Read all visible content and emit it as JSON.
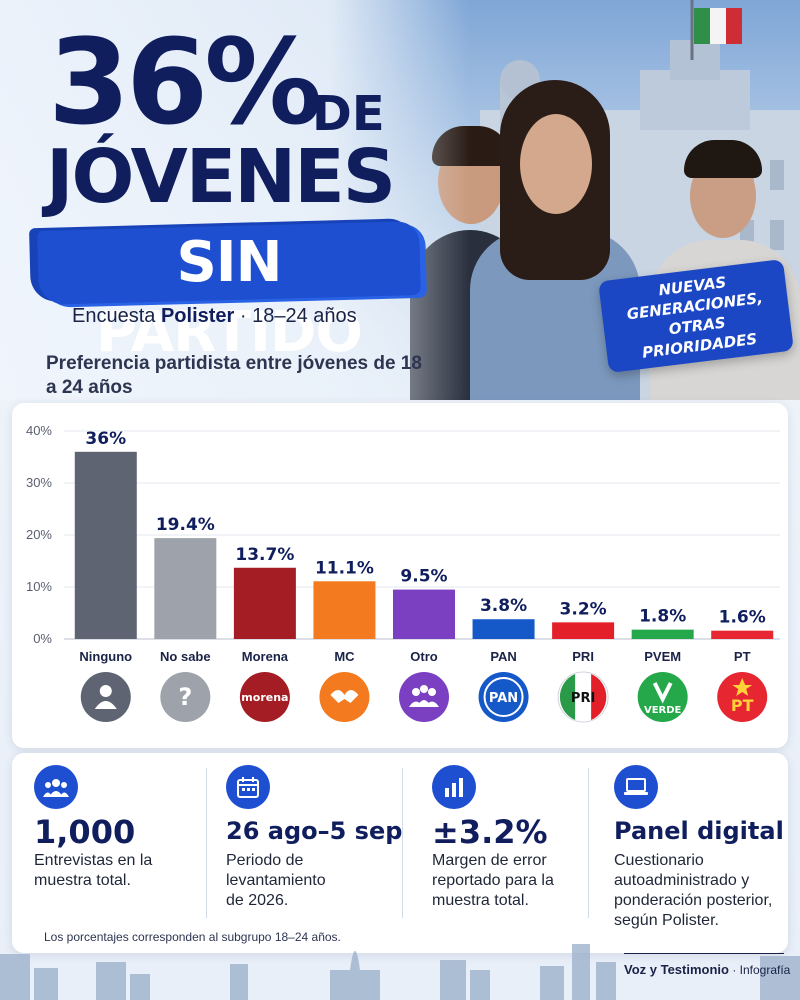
{
  "headline": {
    "percent": "36%",
    "de": "DE",
    "line2": "JÓVENES",
    "line3": "SIN PARTIDO"
  },
  "subhead": {
    "prefix": "Encuesta",
    "pollster": "Polister",
    "suffix": "· 18–24 años"
  },
  "tagline": "NUEVAS GENERACIONES, OTRAS PRIORIDADES",
  "chart_data": {
    "type": "bar",
    "title": "Preferencia partidista entre jóvenes de 18 a 24 años",
    "categories": [
      "Ninguno",
      "No sabe",
      "Morena",
      "MC",
      "Otro",
      "PAN",
      "PRI",
      "PVEM",
      "PT"
    ],
    "values": [
      36,
      19.4,
      13.7,
      11.1,
      9.5,
      3.8,
      3.2,
      1.8,
      1.6
    ],
    "data_labels": [
      "36%",
      "19.4%",
      "13.7%",
      "11.1%",
      "9.5%",
      "3.8%",
      "3.2%",
      "1.8%",
      "1.6%"
    ],
    "colors": [
      "#5f6472",
      "#9ea3ab",
      "#a51d24",
      "#f47a1f",
      "#7b3fc2",
      "#1559c9",
      "#e3202a",
      "#24a84a",
      "#e62731"
    ],
    "ylim": [
      0,
      40
    ],
    "yticks": [
      "0%",
      "10%",
      "20%",
      "30%",
      "40%"
    ],
    "ytick_values": [
      0,
      10,
      20,
      30,
      40
    ],
    "grid": true,
    "icons": [
      {
        "name": "person-icon",
        "text": "",
        "bg": "#5f6472"
      },
      {
        "name": "question-icon",
        "text": "?",
        "bg": "#9ea3ab"
      },
      {
        "name": "morena-logo-icon",
        "text": "morena",
        "bg": "#a51d24"
      },
      {
        "name": "mc-logo-icon",
        "text": "",
        "bg": "#f47a1f"
      },
      {
        "name": "group-icon",
        "text": "",
        "bg": "#7b3fc2"
      },
      {
        "name": "pan-logo-icon",
        "text": "PAN",
        "bg": "#1559c9"
      },
      {
        "name": "pri-logo-icon",
        "text": "PRI",
        "bg": "#ffffff"
      },
      {
        "name": "pvem-logo-icon",
        "text": "VERDE",
        "bg": "#24a84a"
      },
      {
        "name": "pt-logo-icon",
        "text": "PT",
        "bg": "#e62731"
      }
    ]
  },
  "stats": [
    {
      "icon": "people-icon",
      "value": "1,000",
      "desc": "Entrevistas en la muestra total."
    },
    {
      "icon": "calendar-icon",
      "value": "26 ago–5 sep",
      "desc": "Periodo de levantamiento de 2026."
    },
    {
      "icon": "bar-chart-icon",
      "value": "±3.2%",
      "desc": "Margen de error reportado para la muestra total."
    },
    {
      "icon": "laptop-icon",
      "value": "Panel digital",
      "desc": "Cuestionario autoadministrado y ponderación posterior, según Polister."
    }
  ],
  "footnote": "Los porcentajes corresponden al subgrupo 18–24 años.",
  "brand": {
    "name": "Voz y Testimonio",
    "suffix": "· Infografía"
  }
}
